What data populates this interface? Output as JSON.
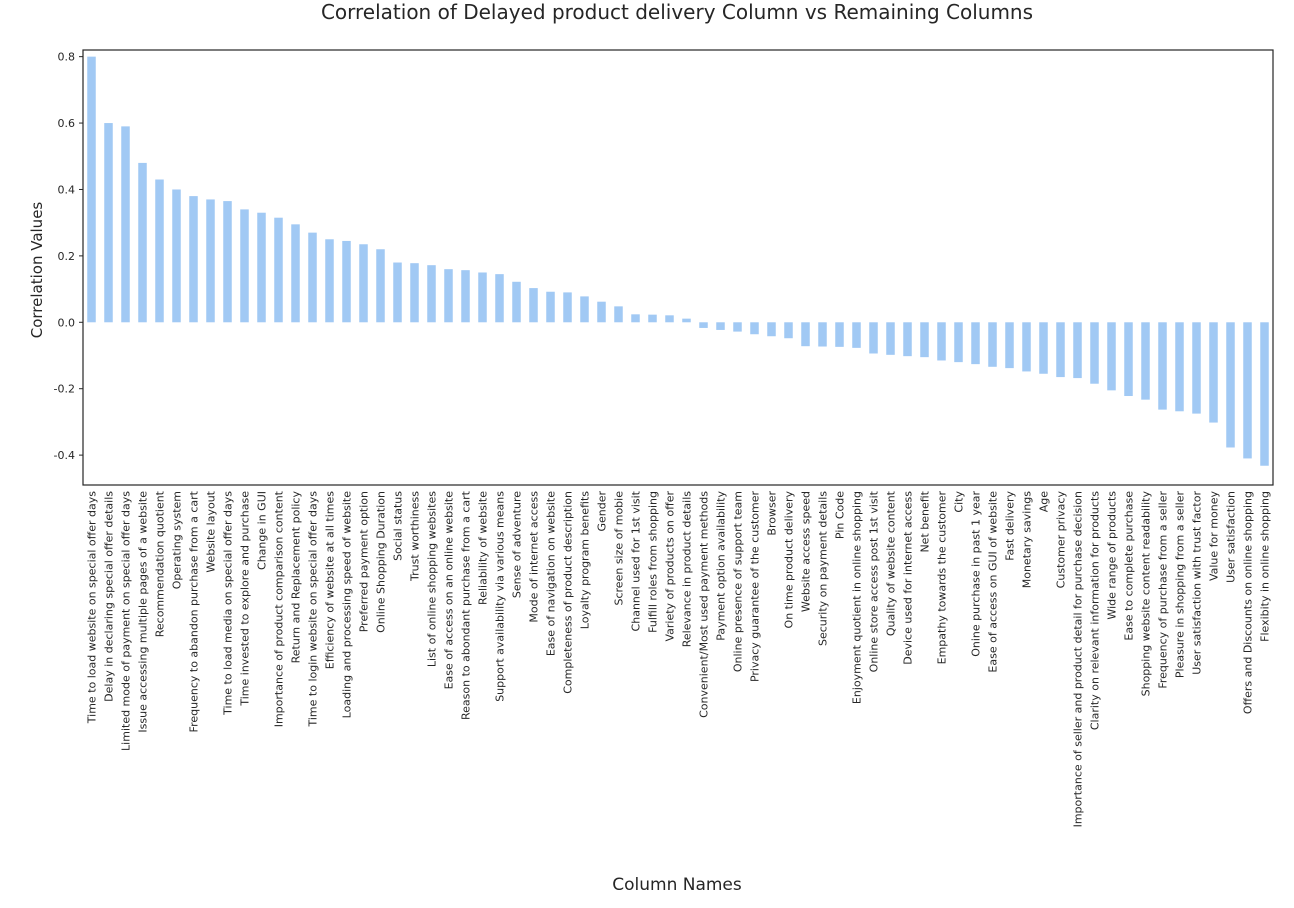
{
  "chart_data": {
    "type": "bar",
    "title": "Correlation of Delayed product delivery Column vs Remaining Columns",
    "xlabel": "Column Names",
    "ylabel": "Correlation Values",
    "ylim": [
      -0.49,
      0.82
    ],
    "yticks": [
      -0.4,
      -0.2,
      0.0,
      0.2,
      0.4,
      0.6,
      0.8
    ],
    "ytick_labels": [
      "-0.4",
      "-0.2",
      "0.0",
      "0.2",
      "0.4",
      "0.6",
      "0.8"
    ],
    "grid": false,
    "bar_color": "#a1c9f4",
    "categories": [
      "Time to load website on special offer days",
      "Delay in declaring special offer details",
      "Limited mode of payment on special offer days",
      "Issue accessing multiple pages of a website",
      "Recommendation quotient",
      "Operating system",
      "Frequency to abandon purchase from a cart",
      "Website layout",
      "Time to load media on special offer days",
      "Time invested to explore and purchase",
      "Change in GUI",
      "Importance of product comparison content",
      "Return and Replacement policy",
      "Time to login website on special offer days",
      "Efficiency of website at all times",
      "Loading and processing speed of website",
      "Preferred payment option",
      "Online Shopping Duration",
      "Social status",
      "Trust worthiness",
      "List of online shopping websites",
      "Ease of access on an online website",
      "Reason to abondant purchase from a cart",
      "Reliability of website",
      "Support availability via various means",
      "Sense of adventure",
      "Mode of internet access",
      "Ease of navigation on website",
      "Completeness of product description",
      "Loyalty program benefits",
      "Gender",
      "Screen size of mobie",
      "Channel used for 1st visit",
      "Fulfill roles from shopping",
      "Variety of products on offer",
      "Relevance in product details",
      "Convenient/Most used payment methods",
      "Payment option availability",
      "Online presence of support team",
      "Privacy guarantee of the customer",
      "Browser",
      "On time product delivery",
      "Website access speed",
      "Security on payment details",
      "Pin Code",
      "Enjoyment quotient in online shopping",
      "Online store access post 1st visit",
      "Quality of website content",
      "Device used for internet access",
      "Net benefit",
      "Empathy towards the customer",
      "City",
      "Onine purchase in past 1 year",
      "Ease of access on GUI of website",
      "Fast delivery",
      "Monetary savings",
      "Age",
      "Customer privacy",
      "Importance of seller and product detail for purchase decision",
      "Clarity on relevant information for products",
      "Wide range of products",
      "Ease to complete purchase",
      "Shopping website content readability",
      "Frequency of purchase from a seller",
      "Pleasure in shopping from a seller",
      "User satisfaction with trust factor",
      "Value for money",
      "User satisfaction",
      "Offers and Discounts on online shopping",
      "Flexibity in online shopping"
    ],
    "values": [
      0.8,
      0.6,
      0.59,
      0.48,
      0.43,
      0.4,
      0.38,
      0.37,
      0.365,
      0.34,
      0.33,
      0.315,
      0.295,
      0.27,
      0.25,
      0.245,
      0.235,
      0.22,
      0.18,
      0.178,
      0.172,
      0.16,
      0.157,
      0.15,
      0.145,
      0.122,
      0.103,
      0.092,
      0.09,
      0.078,
      0.062,
      0.048,
      0.024,
      0.023,
      0.021,
      0.011,
      -0.017,
      -0.023,
      -0.028,
      -0.036,
      -0.042,
      -0.048,
      -0.072,
      -0.073,
      -0.074,
      -0.077,
      -0.094,
      -0.098,
      -0.102,
      -0.105,
      -0.115,
      -0.12,
      -0.126,
      -0.134,
      -0.138,
      -0.148,
      -0.155,
      -0.165,
      -0.168,
      -0.185,
      -0.205,
      -0.222,
      -0.233,
      -0.263,
      -0.268,
      -0.275,
      -0.302,
      -0.377,
      -0.41,
      -0.432
    ]
  }
}
